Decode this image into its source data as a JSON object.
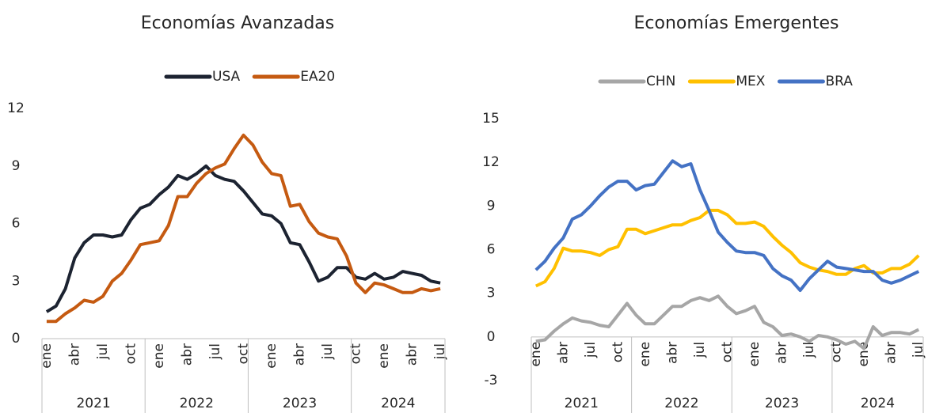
{
  "chart_data": [
    {
      "type": "line",
      "title": "Economías Avanzadas",
      "categories": [
        "ene",
        null,
        null,
        "abr",
        null,
        null,
        "jul",
        null,
        null,
        "oct",
        null,
        null,
        "ene",
        null,
        null,
        "abr",
        null,
        null,
        "jul",
        null,
        null,
        "oct",
        null,
        null,
        "ene",
        null,
        null,
        "abr",
        null,
        null,
        "jul",
        null,
        null,
        "oct",
        null,
        null,
        "ene",
        null,
        null,
        "abr",
        null,
        null,
        "jul"
      ],
      "groups": [
        "2021",
        "2022",
        "2023",
        "2024"
      ],
      "ylim": [
        0,
        12
      ],
      "yticks": [
        0,
        3,
        6,
        9,
        12
      ],
      "grid": false,
      "legend": "top",
      "series": [
        {
          "name": "USA",
          "color": "#1c2331",
          "values": [
            1.4,
            1.7,
            2.6,
            4.2,
            5.0,
            5.4,
            5.4,
            5.3,
            5.4,
            6.2,
            6.8,
            7.0,
            7.5,
            7.9,
            8.5,
            8.3,
            8.6,
            9.0,
            8.5,
            8.3,
            8.2,
            7.7,
            7.1,
            6.5,
            6.4,
            6.0,
            5.0,
            4.9,
            4.0,
            3.0,
            3.2,
            3.7,
            3.7,
            3.2,
            3.1,
            3.4,
            3.1,
            3.2,
            3.5,
            3.4,
            3.3,
            3.0,
            2.9
          ]
        },
        {
          "name": "EA20",
          "color": "#c55a11",
          "values": [
            0.9,
            0.9,
            1.3,
            1.6,
            2.0,
            1.9,
            2.2,
            3.0,
            3.4,
            4.1,
            4.9,
            5.0,
            5.1,
            5.9,
            7.4,
            7.4,
            8.1,
            8.6,
            8.9,
            9.1,
            9.9,
            10.6,
            10.1,
            9.2,
            8.6,
            8.5,
            6.9,
            7.0,
            6.1,
            5.5,
            5.3,
            5.2,
            4.3,
            2.9,
            2.4,
            2.9,
            2.8,
            2.6,
            2.4,
            2.4,
            2.6,
            2.5,
            2.6
          ]
        }
      ]
    },
    {
      "type": "line",
      "title": "Economías Emergentes",
      "categories": [
        "ene",
        null,
        null,
        "abr",
        null,
        null,
        "jul",
        null,
        null,
        "oct",
        null,
        null,
        "ene",
        null,
        null,
        "abr",
        null,
        null,
        "jul",
        null,
        null,
        "oct",
        null,
        null,
        "ene",
        null,
        null,
        "abr",
        null,
        null,
        "jul",
        null,
        null,
        "oct",
        null,
        null,
        "ene",
        null,
        null,
        "abr",
        null,
        null,
        "jul"
      ],
      "groups": [
        "2021",
        "2022",
        "2023",
        "2024"
      ],
      "ylim": [
        -3,
        15
      ],
      "yticks": [
        -3,
        0,
        3,
        6,
        9,
        12,
        15
      ],
      "grid": false,
      "legend": "top",
      "series": [
        {
          "name": "CHN",
          "color": "#a6a6a6",
          "values": [
            -0.3,
            -0.2,
            0.4,
            0.9,
            1.3,
            1.1,
            1.0,
            0.8,
            0.7,
            1.5,
            2.3,
            1.5,
            0.9,
            0.9,
            1.5,
            2.1,
            2.1,
            2.5,
            2.7,
            2.5,
            2.8,
            2.1,
            1.6,
            1.8,
            2.1,
            1.0,
            0.7,
            0.1,
            0.2,
            0.0,
            -0.3,
            0.1,
            0.0,
            -0.2,
            -0.5,
            -0.3,
            -0.8,
            0.7,
            0.1,
            0.3,
            0.3,
            0.2,
            0.5
          ]
        },
        {
          "name": "MEX",
          "color": "#ffc000",
          "values": [
            3.5,
            3.8,
            4.7,
            6.1,
            5.9,
            5.9,
            5.8,
            5.6,
            6.0,
            6.2,
            7.4,
            7.4,
            7.1,
            7.3,
            7.5,
            7.7,
            7.7,
            8.0,
            8.2,
            8.7,
            8.7,
            8.4,
            7.8,
            7.8,
            7.9,
            7.6,
            6.9,
            6.3,
            5.8,
            5.1,
            4.8,
            4.6,
            4.5,
            4.3,
            4.3,
            4.7,
            4.9,
            4.4,
            4.4,
            4.7,
            4.7,
            5.0,
            5.6
          ]
        },
        {
          "name": "BRA",
          "color": "#4472c4",
          "values": [
            4.6,
            5.2,
            6.1,
            6.8,
            8.1,
            8.4,
            9.0,
            9.7,
            10.3,
            10.7,
            10.7,
            10.1,
            10.4,
            10.5,
            11.3,
            12.1,
            11.7,
            11.9,
            10.1,
            8.7,
            7.2,
            6.5,
            5.9,
            5.8,
            5.8,
            5.6,
            4.7,
            4.2,
            3.9,
            3.2,
            4.0,
            4.6,
            5.2,
            4.8,
            4.7,
            4.6,
            4.5,
            4.5,
            3.9,
            3.7,
            3.9,
            4.2,
            4.5
          ]
        }
      ]
    }
  ]
}
